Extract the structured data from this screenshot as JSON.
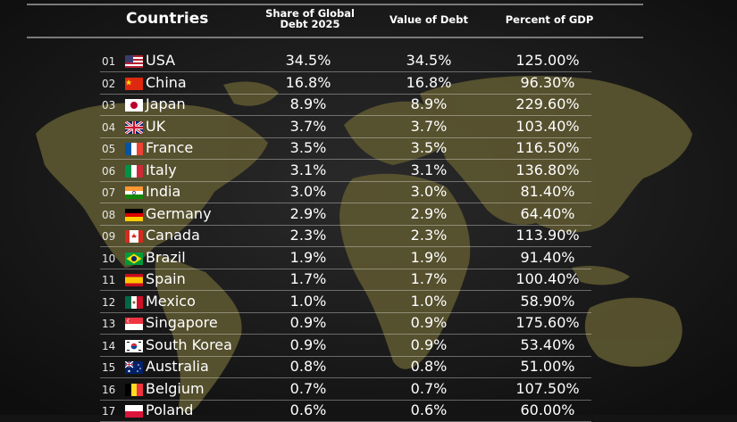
{
  "columns": {
    "countries": "Countries",
    "share_line1": "Share of Global",
    "share_line2": "Debt 2025",
    "value": "Value of Debt",
    "gdp": "Percent of GDP"
  },
  "chart_data": {
    "type": "table",
    "columns": [
      "Countries",
      "Share of Global Debt 2025",
      "Value of Debt",
      "Percent of GDP"
    ],
    "rows": [
      {
        "rank": "01",
        "country": "USA",
        "flag": "usa-flag-icon",
        "share": "34.5%",
        "value": "34.5%",
        "gdp": "125.00%"
      },
      {
        "rank": "02",
        "country": "China",
        "flag": "china-flag-icon",
        "share": "16.8%",
        "value": "16.8%",
        "gdp": "96.30%"
      },
      {
        "rank": "03",
        "country": "Japan",
        "flag": "japan-flag-icon",
        "share": "8.9%",
        "value": "8.9%",
        "gdp": "229.60%"
      },
      {
        "rank": "04",
        "country": "UK",
        "flag": "uk-flag-icon",
        "share": "3.7%",
        "value": "3.7%",
        "gdp": "103.40%"
      },
      {
        "rank": "05",
        "country": "France",
        "flag": "france-flag-icon",
        "share": "3.5%",
        "value": "3.5%",
        "gdp": "116.50%"
      },
      {
        "rank": "06",
        "country": "Italy",
        "flag": "italy-flag-icon",
        "share": "3.1%",
        "value": "3.1%",
        "gdp": "136.80%"
      },
      {
        "rank": "07",
        "country": "India",
        "flag": "india-flag-icon",
        "share": "3.0%",
        "value": "3.0%",
        "gdp": "81.40%"
      },
      {
        "rank": "08",
        "country": "Germany",
        "flag": "germany-flag-icon",
        "share": "2.9%",
        "value": "2.9%",
        "gdp": "64.40%"
      },
      {
        "rank": "09",
        "country": "Canada",
        "flag": "canada-flag-icon",
        "share": "2.3%",
        "value": "2.3%",
        "gdp": "113.90%"
      },
      {
        "rank": "10",
        "country": "Brazil",
        "flag": "brazil-flag-icon",
        "share": "1.9%",
        "value": "1.9%",
        "gdp": "91.40%"
      },
      {
        "rank": "11",
        "country": "Spain",
        "flag": "spain-flag-icon",
        "share": "1.7%",
        "value": "1.7%",
        "gdp": "100.40%"
      },
      {
        "rank": "12",
        "country": "Mexico",
        "flag": "mexico-flag-icon",
        "share": "1.0%",
        "value": "1.0%",
        "gdp": "58.90%"
      },
      {
        "rank": "13",
        "country": "Singapore",
        "flag": "singapore-flag-icon",
        "share": "0.9%",
        "value": "0.9%",
        "gdp": "175.60%"
      },
      {
        "rank": "14",
        "country": "South Korea",
        "flag": "south-korea-flag-icon",
        "share": "0.9%",
        "value": "0.9%",
        "gdp": "53.40%"
      },
      {
        "rank": "15",
        "country": "Australia",
        "flag": "australia-flag-icon",
        "share": "0.8%",
        "value": "0.8%",
        "gdp": "51.00%"
      },
      {
        "rank": "16",
        "country": "Belgium",
        "flag": "belgium-flag-icon",
        "share": "0.7%",
        "value": "0.7%",
        "gdp": "107.50%"
      },
      {
        "rank": "17",
        "country": "Poland",
        "flag": "poland-flag-icon",
        "share": "0.6%",
        "value": "0.6%",
        "gdp": "60.00%"
      }
    ]
  },
  "colors": {
    "background": "#141414",
    "map": "#5c5630",
    "text": "#ffffff",
    "divider": "#7a7a7a"
  }
}
